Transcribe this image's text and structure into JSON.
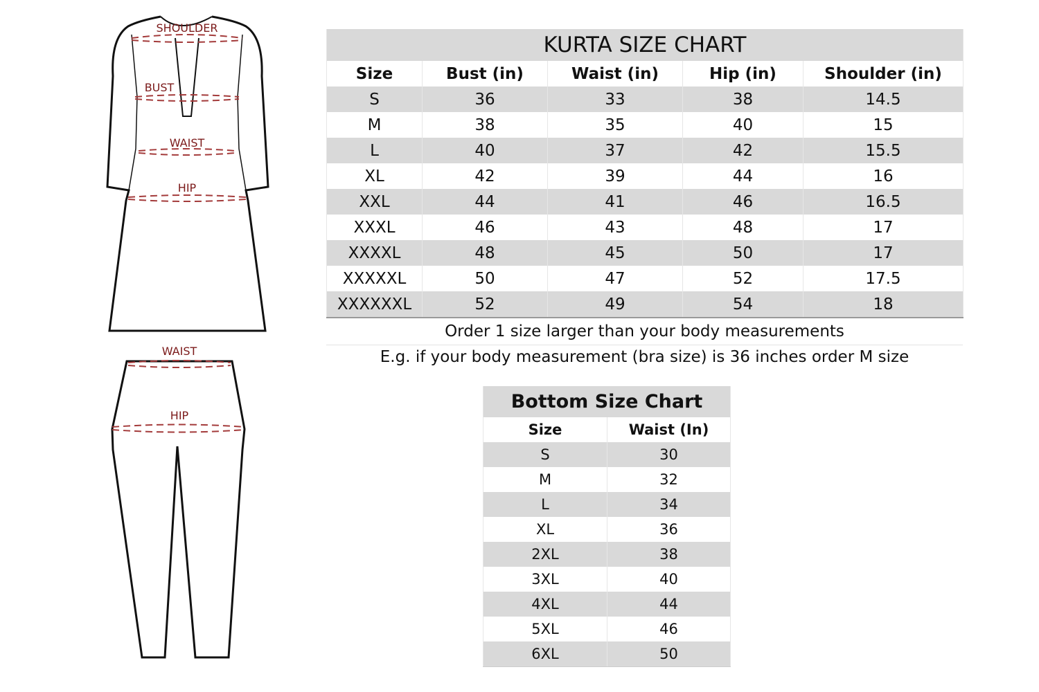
{
  "kurta_chart": {
    "title": "KURTA SIZE CHART",
    "headers": [
      "Size",
      "Bust (in)",
      "Waist (in)",
      "Hip (in)",
      "Shoulder (in)"
    ],
    "rows": [
      [
        "S",
        "36",
        "33",
        "38",
        "14.5"
      ],
      [
        "M",
        "38",
        "35",
        "40",
        "15"
      ],
      [
        "L",
        "40",
        "37",
        "42",
        "15.5"
      ],
      [
        "XL",
        "42",
        "39",
        "44",
        "16"
      ],
      [
        "XXL",
        "44",
        "41",
        "46",
        "16.5"
      ],
      [
        "XXXL",
        "46",
        "43",
        "48",
        "17"
      ],
      [
        "XXXXL",
        "48",
        "45",
        "50",
        "17"
      ],
      [
        "XXXXXL",
        "50",
        "47",
        "52",
        "17.5"
      ],
      [
        "XXXXXXL",
        "52",
        "49",
        "54",
        "18"
      ]
    ]
  },
  "notes": [
    "Order 1 size larger than your body measurements",
    "E.g. if your body measurement (bra size) is 36 inches order M size"
  ],
  "bottom_chart": {
    "title": "Bottom Size Chart",
    "headers": [
      "Size",
      "Waist (In)"
    ],
    "rows": [
      [
        "S",
        "30"
      ],
      [
        "M",
        "32"
      ],
      [
        "L",
        "34"
      ],
      [
        "XL",
        "36"
      ],
      [
        "2XL",
        "38"
      ],
      [
        "3XL",
        "40"
      ],
      [
        "4XL",
        "44"
      ],
      [
        "5XL",
        "46"
      ],
      [
        "6XL",
        "50"
      ]
    ]
  },
  "diagram_labels": {
    "kurta": [
      "SHOULDER",
      "BUST",
      "WAIST",
      "HIP"
    ],
    "bottom": [
      "WAIST",
      "HIP"
    ]
  },
  "colors": {
    "row_shade": "#d9d9d9",
    "label": "#7b1a1a",
    "measure_line": "#a33a3a"
  }
}
